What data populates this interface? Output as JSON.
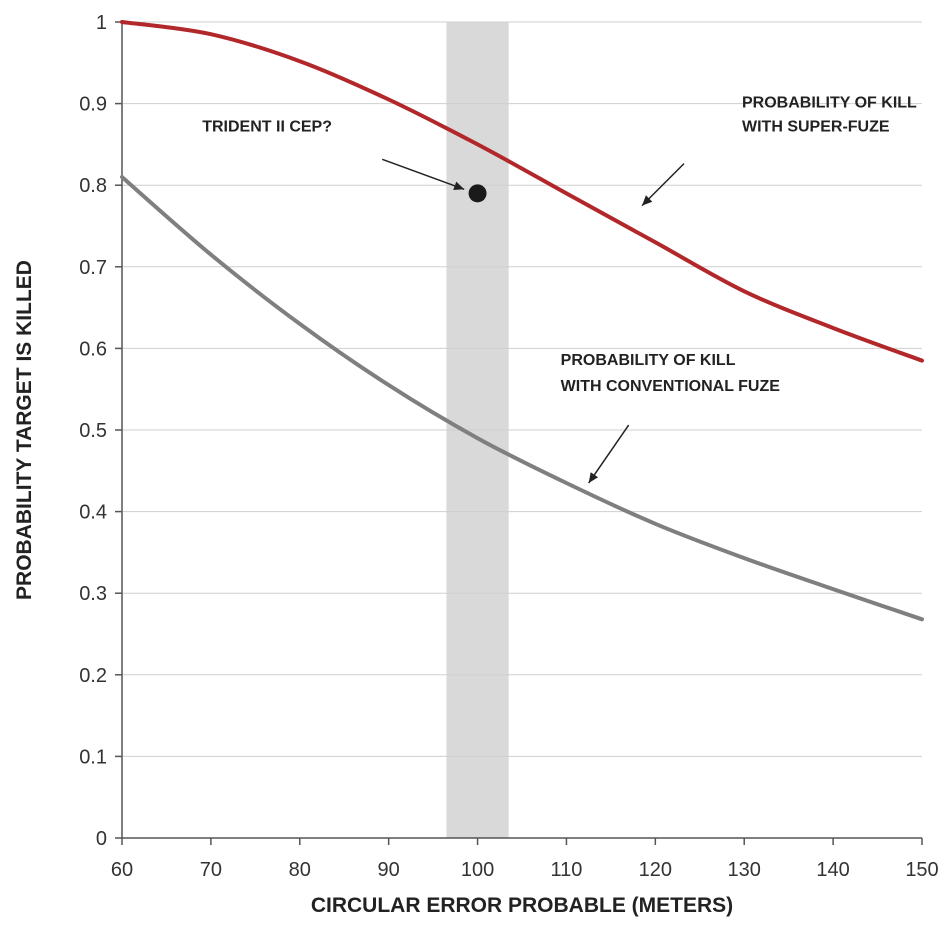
{
  "chart_data": {
    "type": "line",
    "xlabel": "CIRCULAR ERROR PROBABLE (METERS)",
    "ylabel": "PROBABILITY TARGET IS KILLED",
    "xlim": [
      60,
      150
    ],
    "ylim": [
      0,
      1
    ],
    "x_ticks": [
      "60",
      "70",
      "80",
      "90",
      "100",
      "110",
      "120",
      "130",
      "140",
      "150"
    ],
    "y_ticks": [
      "0",
      "0.1",
      "0.2",
      "0.3",
      "0.4",
      "0.5",
      "0.6",
      "0.7",
      "0.8",
      "0.9",
      "1"
    ],
    "grid": "horizontal",
    "x": [
      60,
      70,
      80,
      90,
      100,
      110,
      120,
      130,
      140,
      150
    ],
    "series": [
      {
        "values": [
          1.0,
          0.985,
          0.952,
          0.905,
          0.85,
          0.79,
          0.73,
          0.67,
          0.625,
          0.585
        ],
        "color": "#b2282a"
      },
      {
        "values": [
          0.81,
          0.715,
          0.63,
          0.555,
          0.49,
          0.435,
          0.385,
          0.343,
          0.305,
          0.268
        ],
        "color": "#7f7f7f"
      }
    ],
    "shaded_band": {
      "x_range": [
        96.5,
        103.5
      ],
      "color": "#d9d9d9"
    },
    "point": {
      "x": 100,
      "y": 0.79,
      "color": "#1a1a1a"
    },
    "annotations": [
      {
        "lines": [
          "TRIDENT II CEP?"
        ],
        "arrow_to": {
          "x": 98.5,
          "y": 0.795
        }
      },
      {
        "lines": [
          "PROBABILITY OF KILL",
          "WITH SUPER-FUZE"
        ],
        "arrow_to": {
          "x": 118.5,
          "y": 0.775
        }
      },
      {
        "lines": [
          "PROBABILITY OF KILL",
          "WITH CONVENTIONAL FUZE"
        ],
        "arrow_to": {
          "x": 112.5,
          "y": 0.435
        }
      }
    ]
  }
}
